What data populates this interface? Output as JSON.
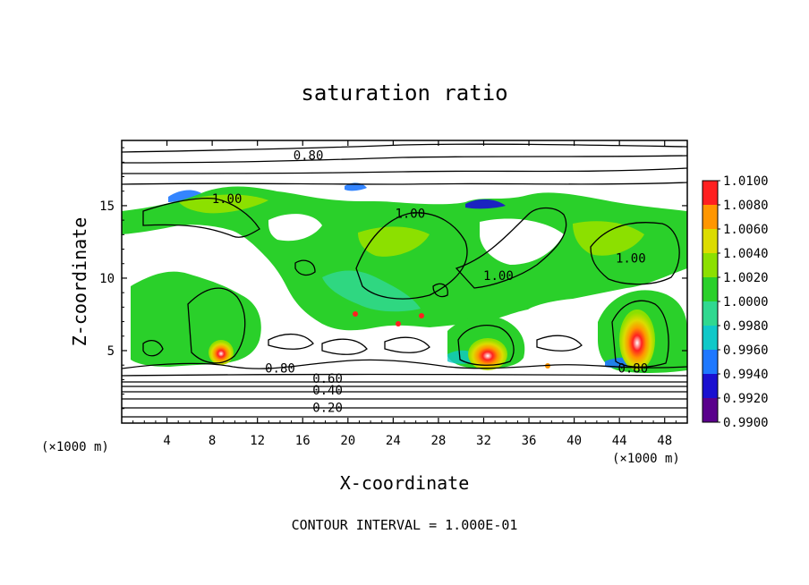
{
  "chart_data": {
    "type": "heatmap",
    "title": "saturation ratio",
    "xlabel": "X-coordinate",
    "ylabel": "Z-coordinate",
    "x_unit": "(×1000 m)",
    "z_unit": "(×1000 m)",
    "xlim": [
      0,
      50
    ],
    "ylim": [
      0,
      19.5
    ],
    "x_ticks": [
      4,
      8,
      12,
      16,
      20,
      24,
      28,
      32,
      36,
      40,
      44,
      48
    ],
    "y_ticks": [
      5,
      10,
      15
    ],
    "colorbar": {
      "levels": [
        "0.9900",
        "0.9920",
        "0.9940",
        "0.9960",
        "0.9980",
        "1.0000",
        "1.0020",
        "1.0040",
        "1.0060",
        "1.0080",
        "1.0100"
      ],
      "colors": [
        "#5a008c",
        "#1a10d0",
        "#1e78ff",
        "#10c8c8",
        "#30d890",
        "#2ad02a",
        "#8ce000",
        "#dcdc00",
        "#ff9600",
        "#ff2020",
        "#ff9090"
      ]
    },
    "contours": {
      "interval_text": "CONTOUR INTERVAL = 1.000E-01",
      "labels": [
        {
          "text": "0.80",
          "x": 16.5,
          "z": 18.3
        },
        {
          "text": "1.00",
          "x": 9.3,
          "z": 15.3
        },
        {
          "text": "1.00",
          "x": 25.5,
          "z": 14.3
        },
        {
          "text": "1.00",
          "x": 33.3,
          "z": 10.0
        },
        {
          "text": "1.00",
          "x": 45.0,
          "z": 11.2
        },
        {
          "text": "0.80",
          "x": 14.0,
          "z": 3.6
        },
        {
          "text": "0.80",
          "x": 45.2,
          "z": 3.6
        },
        {
          "text": "0.60",
          "x": 18.2,
          "z": 2.9
        },
        {
          "text": "0.40",
          "x": 18.2,
          "z": 2.1
        },
        {
          "text": "0.20",
          "x": 18.2,
          "z": 0.9
        }
      ]
    }
  }
}
